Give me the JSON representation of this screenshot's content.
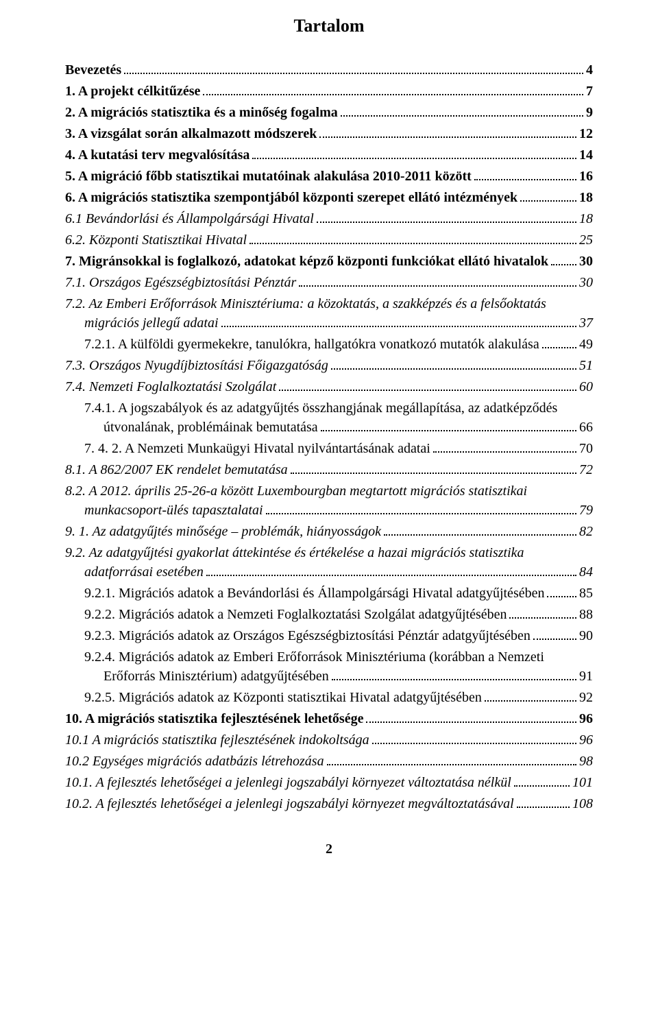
{
  "title": "Tartalom",
  "page_number": "2",
  "entries": [
    {
      "text": "Bevezetés",
      "page": "4",
      "bold": true,
      "italic": false,
      "indent": 0
    },
    {
      "text": "1. A projekt célkitűzése",
      "page": "7",
      "bold": true,
      "italic": false,
      "indent": 0
    },
    {
      "text": "2. A migrációs statisztika és a minőség fogalma",
      "page": "9",
      "bold": true,
      "italic": false,
      "indent": 0
    },
    {
      "text": "3. A vizsgálat során alkalmazott módszerek",
      "page": "12",
      "bold": true,
      "italic": false,
      "indent": 0
    },
    {
      "text": "4. A kutatási terv megvalósítása",
      "page": "14",
      "bold": true,
      "italic": false,
      "indent": 0
    },
    {
      "text": "5. A migráció főbb statisztikai mutatóinak alakulása 2010-2011 között",
      "page": "16",
      "bold": true,
      "italic": false,
      "indent": 0
    },
    {
      "text": "6. A migrációs statisztika szempontjából központi szerepet ellátó intézmények",
      "page": "18",
      "bold": true,
      "italic": false,
      "indent": 0
    },
    {
      "text": "6.1 Bevándorlási és Állampolgársági Hivatal",
      "page": "18",
      "bold": false,
      "italic": true,
      "indent": 0
    },
    {
      "text": "6.2. Központi Statisztikai Hivatal",
      "page": "25",
      "bold": false,
      "italic": true,
      "indent": 0
    },
    {
      "text": "7. Migránsokkal is foglalkozó, adatokat képző központi funkciókat ellátó hivatalok",
      "page": "30",
      "bold": true,
      "italic": false,
      "indent": 0
    },
    {
      "text": "7.1. Országos Egészségbiztosítási Pénztár",
      "page": "30",
      "bold": false,
      "italic": true,
      "indent": 0
    },
    {
      "text_lines": [
        "7.2. Az Emberi Erőforrások Minisztériuma: a közoktatás, a szakképzés és a felsőoktatás",
        "migrációs jellegű adatai"
      ],
      "page": "37",
      "bold": false,
      "italic": true,
      "indent": 0,
      "wrap_indent": 1
    },
    {
      "text": "7.2.1. A külföldi gyermekekre, tanulókra, hallgatókra vonatkozó mutatók alakulása",
      "page": "49",
      "bold": false,
      "italic": false,
      "indent": 1
    },
    {
      "text": "7.3. Országos Nyugdíjbiztosítási Főigazgatóság",
      "page": "51",
      "bold": false,
      "italic": true,
      "indent": 0
    },
    {
      "text": "7.4. Nemzeti Foglalkoztatási Szolgálat",
      "page": "60",
      "bold": false,
      "italic": true,
      "indent": 0
    },
    {
      "text_lines": [
        "7.4.1. A jogszabályok és az adatgyűjtés összhangjának megállapítása, az adatképződés",
        "útvonalának, problémáinak bemutatása"
      ],
      "page": "66",
      "bold": false,
      "italic": false,
      "indent": 1,
      "wrap_indent": 2
    },
    {
      "text": "7. 4. 2. A Nemzeti Munkaügyi Hivatal nyilvántartásának adatai",
      "page": "70",
      "bold": false,
      "italic": false,
      "indent": 1
    },
    {
      "text": "8.1. A 862/2007 EK rendelet bemutatása",
      "page": "72",
      "bold": false,
      "italic": true,
      "indent": 0
    },
    {
      "text_lines": [
        "8.2. A 2012. április 25-26-a között Luxembourgban megtartott migrációs statisztikai",
        "munkacsoport-ülés tapasztalatai"
      ],
      "page": "79",
      "bold": false,
      "italic": true,
      "indent": 0,
      "wrap_indent": 1
    },
    {
      "text": "9. 1. Az adatgyűjtés minősége – problémák, hiányosságok",
      "page": "82",
      "bold": false,
      "italic": true,
      "indent": 0
    },
    {
      "text_lines": [
        "9.2. Az adatgyűjtési gyakorlat áttekintése és értékelése a hazai migrációs statisztika",
        "adatforrásai esetében"
      ],
      "page": "84",
      "bold": false,
      "italic": true,
      "indent": 0,
      "wrap_indent": 1
    },
    {
      "text": "9.2.1. Migrációs adatok a Bevándorlási és Állampolgársági Hivatal adatgyűjtésében",
      "page": "85",
      "bold": false,
      "italic": false,
      "indent": 1,
      "leader_style": "short"
    },
    {
      "text": "9.2.2. Migrációs adatok a Nemzeti Foglalkoztatási Szolgálat adatgyűjtésében",
      "page": "88",
      "bold": false,
      "italic": false,
      "indent": 1
    },
    {
      "text": "9.2.3. Migrációs adatok az Országos Egészségbiztosítási Pénztár adatgyűjtésében",
      "page": "90",
      "bold": false,
      "italic": false,
      "indent": 1
    },
    {
      "text_lines": [
        "9.2.4. Migrációs adatok az Emberi Erőforrások Minisztériuma (korábban a Nemzeti",
        "Erőforrás Minisztérium) adatgyűjtésében"
      ],
      "page": "91",
      "bold": false,
      "italic": false,
      "indent": 1,
      "wrap_indent": 2
    },
    {
      "text": "9.2.5. Migrációs adatok az Központi statisztikai Hivatal adatgyűjtésében",
      "page": "92",
      "bold": false,
      "italic": false,
      "indent": 1
    },
    {
      "text": "10. A migrációs statisztika fejlesztésének lehetősége",
      "page": "96",
      "bold": true,
      "italic": false,
      "indent": 0
    },
    {
      "text": "10.1 A migrációs statisztika fejlesztésének indokoltsága",
      "page": "96",
      "bold": false,
      "italic": true,
      "indent": 0
    },
    {
      "text": "10.2 Egységes migrációs adatbázis létrehozása",
      "page": "98",
      "bold": false,
      "italic": true,
      "indent": 0
    },
    {
      "text": "10.1. A fejlesztés lehetőségei a jelenlegi jogszabályi környezet változtatása nélkül",
      "page": "101",
      "bold": false,
      "italic": true,
      "indent": 0
    },
    {
      "text": "10.2. A fejlesztés lehetőségei a jelenlegi jogszabályi környezet megváltoztatásával",
      "page": "108",
      "bold": false,
      "italic": true,
      "indent": 0
    }
  ]
}
